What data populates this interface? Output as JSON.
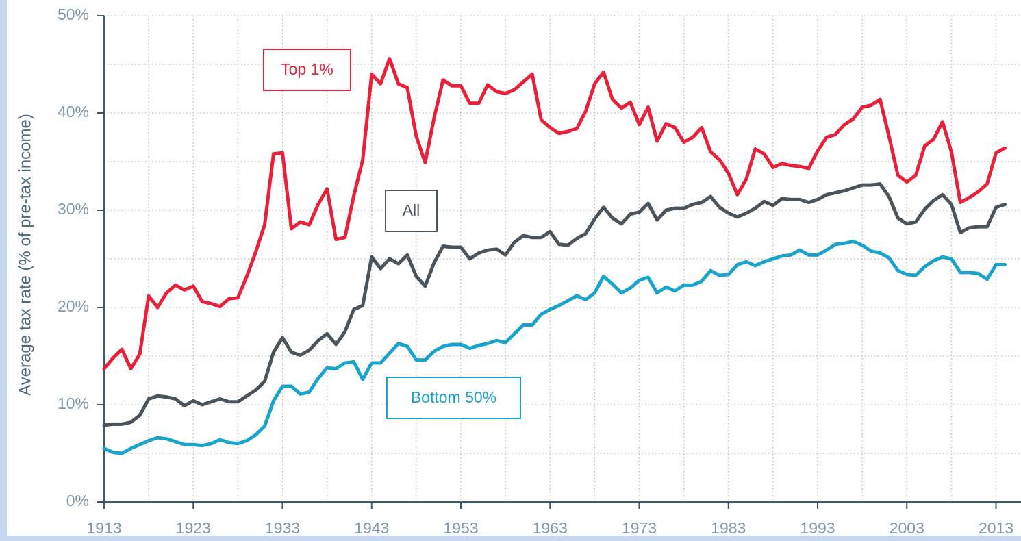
{
  "chart_data": {
    "type": "line",
    "y_label": "Average tax rate (% of pre-tax income)",
    "x": [
      1913,
      1914,
      1915,
      1916,
      1917,
      1918,
      1919,
      1920,
      1921,
      1922,
      1923,
      1924,
      1925,
      1926,
      1927,
      1928,
      1929,
      1930,
      1931,
      1932,
      1933,
      1934,
      1935,
      1936,
      1937,
      1938,
      1939,
      1940,
      1941,
      1942,
      1943,
      1944,
      1945,
      1946,
      1947,
      1948,
      1949,
      1950,
      1951,
      1952,
      1953,
      1954,
      1955,
      1956,
      1957,
      1958,
      1959,
      1960,
      1961,
      1962,
      1963,
      1964,
      1965,
      1966,
      1967,
      1968,
      1969,
      1970,
      1971,
      1972,
      1973,
      1974,
      1975,
      1976,
      1977,
      1978,
      1979,
      1980,
      1981,
      1982,
      1983,
      1984,
      1985,
      1986,
      1987,
      1988,
      1989,
      1990,
      1991,
      1992,
      1993,
      1994,
      1995,
      1996,
      1997,
      1998,
      1999,
      2000,
      2001,
      2002,
      2003,
      2004,
      2005,
      2006,
      2007,
      2008,
      2009,
      2010,
      2011,
      2012,
      2013,
      2014
    ],
    "series": [
      {
        "name": "Top 1%",
        "color": "#e8203a",
        "values": [
          13.7,
          14.8,
          15.7,
          13.7,
          15.2,
          21.2,
          20.0,
          21.5,
          22.3,
          21.8,
          22.2,
          20.6,
          20.4,
          20.1,
          20.9,
          21.0,
          23.2,
          25.7,
          28.5,
          35.8,
          35.9,
          28.1,
          28.8,
          28.5,
          30.6,
          32.2,
          27.0,
          27.2,
          31.5,
          35.2,
          44.0,
          43.0,
          45.6,
          43.0,
          42.6,
          37.6,
          34.9,
          39.5,
          43.4,
          42.8,
          42.8,
          41.0,
          41.0,
          42.9,
          42.2,
          42.0,
          42.4,
          43.2,
          44.0,
          39.3,
          38.5,
          37.9,
          38.1,
          38.4,
          40.2,
          43.0,
          44.2,
          41.4,
          40.5,
          41.1,
          38.8,
          40.6,
          37.1,
          38.9,
          38.5,
          37.0,
          37.5,
          38.5,
          36.0,
          35.2,
          33.8,
          31.6,
          33.2,
          36.3,
          35.8,
          34.4,
          34.8,
          34.6,
          34.5,
          34.3,
          36.1,
          37.5,
          37.8,
          38.8,
          39.4,
          40.6,
          40.8,
          41.4,
          37.6,
          33.6,
          32.9,
          33.6,
          36.6,
          37.3,
          39.1,
          36.0,
          30.8,
          31.3,
          31.9,
          32.7,
          35.9,
          36.4
        ]
      },
      {
        "name": "All",
        "color": "#4a545c",
        "values": [
          7.9,
          8.0,
          8.0,
          8.2,
          8.9,
          10.6,
          10.9,
          10.8,
          10.6,
          9.9,
          10.4,
          10.0,
          10.3,
          10.6,
          10.3,
          10.3,
          10.9,
          11.5,
          12.4,
          15.4,
          16.9,
          15.4,
          15.1,
          15.6,
          16.6,
          17.3,
          16.2,
          17.5,
          19.8,
          20.2,
          25.2,
          24.0,
          25.0,
          24.5,
          25.4,
          23.2,
          22.2,
          24.6,
          26.3,
          26.2,
          26.2,
          25.0,
          25.6,
          25.9,
          26.0,
          25.4,
          26.7,
          27.4,
          27.2,
          27.2,
          27.8,
          26.5,
          26.4,
          27.1,
          27.6,
          29.1,
          30.3,
          29.2,
          28.6,
          29.6,
          29.8,
          30.7,
          29.0,
          30.0,
          30.2,
          30.2,
          30.6,
          30.8,
          31.4,
          30.3,
          29.7,
          29.3,
          29.7,
          30.2,
          30.9,
          30.5,
          31.2,
          31.1,
          31.1,
          30.8,
          31.1,
          31.6,
          31.8,
          32.0,
          32.3,
          32.6,
          32.6,
          32.7,
          31.4,
          29.2,
          28.6,
          28.8,
          30.1,
          31.0,
          31.6,
          30.6,
          27.7,
          28.2,
          28.3,
          28.3,
          30.3,
          30.6
        ]
      },
      {
        "name": "Bottom 50%",
        "color": "#1aa3cc",
        "values": [
          5.5,
          5.1,
          5.0,
          5.5,
          5.9,
          6.3,
          6.6,
          6.5,
          6.2,
          5.9,
          5.9,
          5.8,
          6.0,
          6.4,
          6.1,
          6.0,
          6.3,
          6.9,
          7.8,
          10.4,
          11.9,
          11.9,
          11.1,
          11.3,
          12.7,
          13.8,
          13.7,
          14.3,
          14.4,
          12.6,
          14.3,
          14.3,
          15.3,
          16.3,
          16.0,
          14.6,
          14.6,
          15.5,
          16.0,
          16.2,
          16.2,
          15.8,
          16.1,
          16.3,
          16.6,
          16.4,
          17.3,
          18.2,
          18.2,
          19.3,
          19.8,
          20.2,
          20.7,
          21.2,
          20.8,
          21.5,
          23.2,
          22.4,
          21.5,
          22.0,
          22.8,
          23.1,
          21.5,
          22.1,
          21.7,
          22.3,
          22.3,
          22.7,
          23.8,
          23.3,
          23.4,
          24.4,
          24.7,
          24.3,
          24.7,
          25.0,
          25.3,
          25.4,
          25.9,
          25.4,
          25.4,
          25.9,
          26.5,
          26.6,
          26.8,
          26.4,
          25.8,
          25.6,
          25.1,
          23.8,
          23.4,
          23.3,
          24.2,
          24.8,
          25.2,
          25.0,
          23.6,
          23.6,
          23.5,
          22.9,
          24.4,
          24.4
        ]
      }
    ],
    "xlim": [
      1913,
      2015.8
    ],
    "xticks": [
      1913,
      1923,
      1933,
      1943,
      1953,
      1963,
      1973,
      1983,
      1993,
      2003,
      2013
    ],
    "xminorticks": [
      1918,
      1928,
      1938,
      1948,
      1958,
      1968,
      1978,
      1988,
      1998,
      2008
    ],
    "ylim": [
      0,
      50
    ],
    "yticks": [
      {
        "value": 0,
        "label": "0%"
      },
      {
        "value": 10,
        "label": "10%"
      },
      {
        "value": 20,
        "label": "20%"
      },
      {
        "value": 30,
        "label": "30%"
      },
      {
        "value": 40,
        "label": "40%"
      },
      {
        "value": 50,
        "label": "50%"
      }
    ],
    "yminorticks": [
      5,
      15,
      25,
      35,
      45
    ],
    "grid": true
  }
}
